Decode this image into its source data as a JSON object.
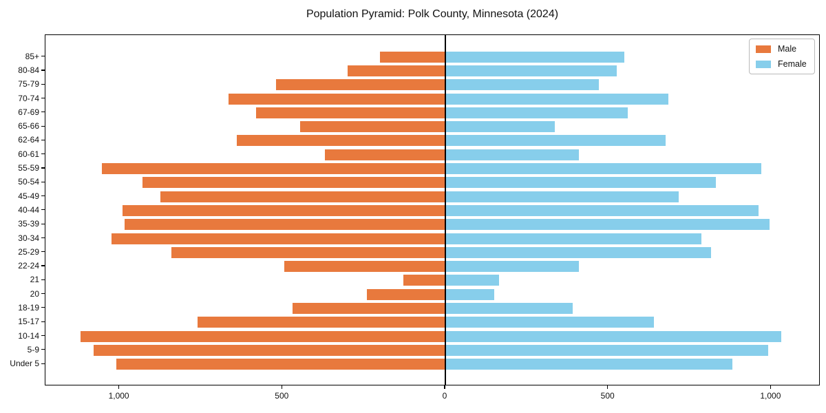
{
  "chart_data": {
    "type": "bar",
    "variant": "population-pyramid",
    "title": "Population Pyramid: Polk County, Minnesota (2024)",
    "categories": [
      "85+",
      "80-84",
      "75-79",
      "70-74",
      "67-69",
      "65-66",
      "62-64",
      "60-61",
      "55-59",
      "50-54",
      "45-49",
      "40-44",
      "35-39",
      "30-34",
      "25-29",
      "22-24",
      "21",
      "20",
      "18-19",
      "15-17",
      "10-14",
      "5-9",
      "Under 5"
    ],
    "series": [
      {
        "name": "Male",
        "side": "left",
        "color": "#e8793d",
        "values": [
          200,
          300,
          520,
          665,
          580,
          445,
          640,
          370,
          1055,
          930,
          875,
          990,
          985,
          1025,
          840,
          495,
          130,
          240,
          470,
          760,
          1120,
          1080,
          1010
        ]
      },
      {
        "name": "Female",
        "side": "right",
        "color": "#87ceeb",
        "values": [
          550,
          525,
          470,
          685,
          560,
          335,
          675,
          410,
          970,
          830,
          715,
          960,
          995,
          785,
          815,
          410,
          165,
          150,
          390,
          640,
          1030,
          990,
          880
        ]
      }
    ],
    "xtick_labels": [
      "1,000",
      "500",
      "0",
      "500",
      "1,000"
    ],
    "xtick_values": [
      -1000,
      -500,
      0,
      500,
      1000
    ],
    "xlim": [
      -1227,
      1151
    ],
    "grid": false,
    "legend_position": "upper right",
    "axis_color": "#000000"
  }
}
